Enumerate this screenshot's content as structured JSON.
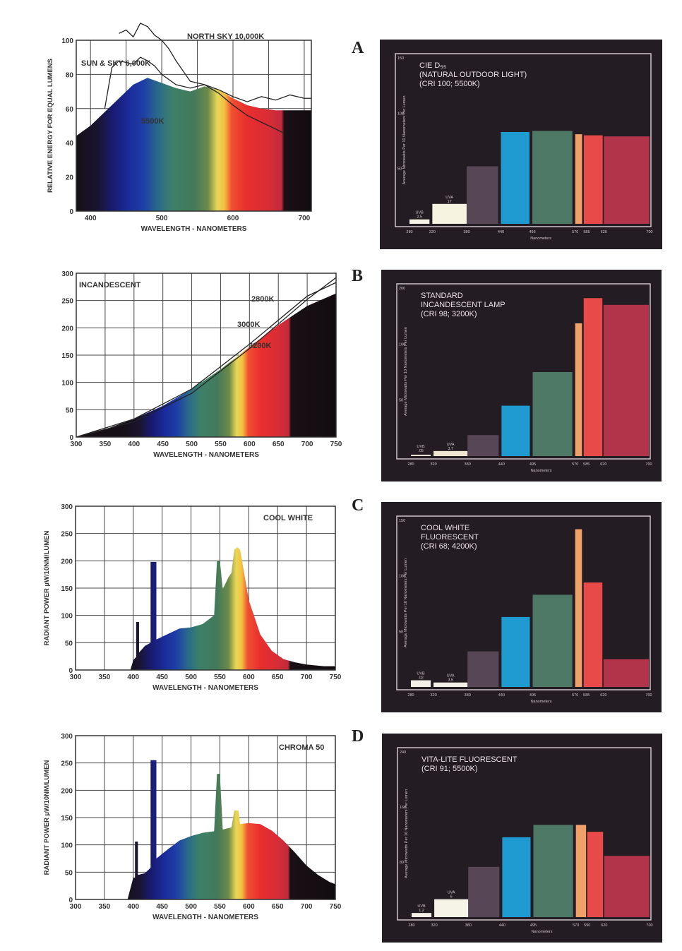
{
  "letters": [
    "A",
    "B",
    "C",
    "D"
  ],
  "colors": {
    "background": "#ffffff",
    "panel": "#231c22",
    "ink": "#333333"
  },
  "chart_data": [
    {
      "id": "spd-daylight",
      "type": "area",
      "xlabel": "WAVELENGTH - NANOMETERS",
      "ylabel": "RELATIVE ENERGY FOR EQUAL LUMENS",
      "xlim": [
        380,
        710
      ],
      "ylim": [
        0,
        100
      ],
      "xticks": [
        400,
        500,
        600,
        700
      ],
      "yticks": [
        0,
        20,
        40,
        60,
        80,
        100
      ],
      "annotations": [
        "NORTH SKY 10,000K",
        "SUN & SKY 6,000K",
        "5500K"
      ],
      "fill": [
        [
          380,
          44
        ],
        [
          400,
          50
        ],
        [
          420,
          58
        ],
        [
          440,
          66
        ],
        [
          460,
          74
        ],
        [
          480,
          78
        ],
        [
          500,
          75
        ],
        [
          520,
          72
        ],
        [
          540,
          70
        ],
        [
          560,
          73
        ],
        [
          580,
          71
        ],
        [
          600,
          66
        ],
        [
          620,
          62
        ],
        [
          640,
          60
        ],
        [
          660,
          59
        ],
        [
          680,
          59
        ],
        [
          700,
          59
        ],
        [
          710,
          59
        ]
      ],
      "series": [
        {
          "name": "NORTH SKY 10,000K",
          "x": [
            440,
            450,
            460,
            470,
            480,
            490,
            500,
            510,
            520,
            540,
            560,
            580,
            600,
            620,
            640,
            660,
            680,
            700,
            710
          ],
          "y": [
            104,
            106,
            102,
            110,
            108,
            103,
            100,
            95,
            88,
            76,
            74,
            71,
            67,
            64,
            67,
            65,
            68,
            66,
            66
          ]
        },
        {
          "name": "SUN & SKY 6,000K",
          "x": [
            420,
            430,
            440,
            450,
            460,
            470,
            480,
            490,
            500,
            520,
            540,
            560,
            580,
            600,
            620,
            640,
            660,
            670
          ],
          "y": [
            60,
            84,
            88,
            87,
            86,
            90,
            88,
            85,
            80,
            74,
            72,
            74,
            69,
            62,
            56,
            52,
            48,
            46
          ]
        }
      ]
    },
    {
      "id": "spd-incandescent",
      "type": "area",
      "xlabel": "WAVELENGTH - NANOMETERS",
      "ylabel": "",
      "xlim": [
        300,
        750
      ],
      "ylim": [
        0,
        300
      ],
      "xticks": [
        300,
        350,
        400,
        450,
        500,
        550,
        600,
        650,
        700,
        750
      ],
      "yticks": [
        0,
        50,
        100,
        150,
        200,
        250,
        300
      ],
      "annotations": [
        "INCANDESCENT",
        "2800K",
        "3000K",
        "3200K"
      ],
      "fill": [
        [
          300,
          0
        ],
        [
          350,
          14
        ],
        [
          400,
          33
        ],
        [
          450,
          57
        ],
        [
          500,
          88
        ],
        [
          550,
          124
        ],
        [
          600,
          165
        ],
        [
          650,
          205
        ],
        [
          700,
          240
        ],
        [
          750,
          263
        ]
      ],
      "series": [
        {
          "name": "2800K",
          "x": [
            300,
            400,
            500,
            600,
            700,
            750
          ],
          "y": [
            0,
            28,
            80,
            162,
            252,
            292
          ]
        },
        {
          "name": "3000K",
          "x": [
            300,
            400,
            500,
            600,
            700,
            750
          ],
          "y": [
            0,
            33,
            88,
            170,
            258,
            283
          ]
        }
      ]
    },
    {
      "id": "spd-cool-white",
      "type": "area",
      "xlabel": "WAVELENGTH - NANOMETERS",
      "ylabel": "RADIANT POWER µW/10NM/LUMEN",
      "xlim": [
        300,
        750
      ],
      "ylim": [
        0,
        300
      ],
      "xticks": [
        300,
        350,
        400,
        450,
        500,
        550,
        600,
        650,
        700,
        750
      ],
      "yticks": [
        0,
        50,
        100,
        150,
        200,
        250,
        300
      ],
      "annotations": [
        "COOL WHITE"
      ],
      "fill": [
        [
          395,
          0
        ],
        [
          400,
          18
        ],
        [
          405,
          24
        ],
        [
          405,
          88
        ],
        [
          410,
          88
        ],
        [
          410,
          32
        ],
        [
          420,
          44
        ],
        [
          430,
          50
        ],
        [
          430,
          198
        ],
        [
          440,
          198
        ],
        [
          440,
          56
        ],
        [
          460,
          66
        ],
        [
          480,
          76
        ],
        [
          500,
          78
        ],
        [
          520,
          84
        ],
        [
          540,
          100
        ],
        [
          545,
          200
        ],
        [
          550,
          200
        ],
        [
          555,
          148
        ],
        [
          565,
          170
        ],
        [
          570,
          178
        ],
        [
          575,
          220
        ],
        [
          580,
          225
        ],
        [
          585,
          220
        ],
        [
          590,
          190
        ],
        [
          600,
          128
        ],
        [
          620,
          65
        ],
        [
          640,
          35
        ],
        [
          660,
          20
        ],
        [
          680,
          14
        ],
        [
          700,
          10
        ],
        [
          730,
          7
        ],
        [
          750,
          7
        ],
        [
          750,
          0
        ]
      ]
    },
    {
      "id": "spd-chroma-50",
      "type": "area",
      "xlabel": "WAVELENGTH - NANOMETERS",
      "ylabel": "RADIANT POWER µW/10NM/LUMEN",
      "xlim": [
        300,
        750
      ],
      "ylim": [
        0,
        300
      ],
      "xticks": [
        300,
        350,
        400,
        450,
        500,
        550,
        600,
        650,
        700,
        750
      ],
      "yticks": [
        0,
        50,
        100,
        150,
        200,
        250,
        300
      ],
      "annotations": [
        "CHROMA 50"
      ],
      "fill": [
        [
          390,
          0
        ],
        [
          400,
          40
        ],
        [
          403,
          40
        ],
        [
          403,
          106
        ],
        [
          408,
          106
        ],
        [
          408,
          45
        ],
        [
          420,
          48
        ],
        [
          430,
          58
        ],
        [
          430,
          255
        ],
        [
          440,
          255
        ],
        [
          440,
          75
        ],
        [
          460,
          92
        ],
        [
          480,
          108
        ],
        [
          500,
          116
        ],
        [
          520,
          122
        ],
        [
          540,
          125
        ],
        [
          545,
          230
        ],
        [
          550,
          230
        ],
        [
          555,
          128
        ],
        [
          570,
          132
        ],
        [
          575,
          163
        ],
        [
          582,
          163
        ],
        [
          585,
          138
        ],
        [
          600,
          140
        ],
        [
          620,
          138
        ],
        [
          640,
          126
        ],
        [
          660,
          108
        ],
        [
          680,
          86
        ],
        [
          700,
          62
        ],
        [
          720,
          45
        ],
        [
          740,
          32
        ],
        [
          750,
          28
        ],
        [
          750,
          0
        ]
      ]
    },
    {
      "id": "bars-a",
      "type": "bar",
      "title": [
        "CIE D₅₅",
        "(NATURAL OUTDOOR LIGHT)",
        "(CRI 100; 5500K)"
      ],
      "ylabel": "Average Microwatts Per 10 Nanometers Per Lumen",
      "xlabel": "Nanometers",
      "ylim": [
        0,
        150
      ],
      "yticks": [
        "50",
        "100",
        "150"
      ],
      "xticks": [
        "280",
        "320",
        "380",
        "440",
        "495",
        "570",
        "585",
        "620",
        "700"
      ],
      "bars": [
        {
          "x0": 280,
          "x1": 315,
          "v": 4,
          "c": "#f6f2e6"
        },
        {
          "x0": 320,
          "x1": 380,
          "v": 18,
          "c": "#f6f4e0"
        },
        {
          "x0": 380,
          "x1": 435,
          "v": 52,
          "c": "#574656"
        },
        {
          "x0": 440,
          "x1": 490,
          "v": 83,
          "c": "#1f9ad0"
        },
        {
          "x0": 495,
          "x1": 565,
          "v": 84,
          "c": "#4e7866"
        },
        {
          "x0": 570,
          "x1": 582,
          "v": 81,
          "c": "#f0a16a"
        },
        {
          "x0": 585,
          "x1": 618,
          "v": 80,
          "c": "#e84a4a"
        },
        {
          "x0": 620,
          "x1": 700,
          "v": 79,
          "c": "#b2344a"
        }
      ],
      "uv": [
        {
          "label": "UVB",
          "v": "2.5"
        },
        {
          "label": "UVA",
          "v": "17"
        }
      ]
    },
    {
      "id": "bars-b",
      "type": "bar",
      "title": [
        "STANDARD",
        "INCANDESCENT LAMP",
        "(CRI 98; 3200K)"
      ],
      "ylabel": "Average Microwatts Per 10 Nanometers Per Lumen",
      "xlabel": "Nanometers",
      "ylim": [
        0,
        200
      ],
      "yticks": [
        "50",
        "100",
        "200"
      ],
      "xticks": [
        "280",
        "320",
        "380",
        "440",
        "495",
        "570",
        "585",
        "620",
        "700"
      ],
      "bars": [
        {
          "x0": 280,
          "x1": 315,
          "v": 1.5,
          "c": "#f3ece2"
        },
        {
          "x0": 320,
          "x1": 380,
          "v": 6,
          "c": "#efe6d2"
        },
        {
          "x0": 380,
          "x1": 435,
          "v": 25,
          "c": "#574656"
        },
        {
          "x0": 440,
          "x1": 490,
          "v": 60,
          "c": "#1f9ad0"
        },
        {
          "x0": 495,
          "x1": 565,
          "v": 100,
          "c": "#4e7866"
        },
        {
          "x0": 570,
          "x1": 582,
          "v": 158,
          "c": "#f0a16a"
        },
        {
          "x0": 585,
          "x1": 618,
          "v": 188,
          "c": "#e84a4a"
        },
        {
          "x0": 620,
          "x1": 700,
          "v": 180,
          "c": "#b2344a"
        }
      ],
      "uv": [
        {
          "label": "UVB",
          "v": ".05"
        },
        {
          "label": "UVA",
          "v": "3.7"
        }
      ]
    },
    {
      "id": "bars-c",
      "type": "bar",
      "title": [
        "COOL WHITE",
        "FLUORESCENT",
        "(CRI 68; 4200K)"
      ],
      "ylabel": "Average Microwatts Per 10 Nanometers Per Lumen",
      "xlabel": "Nanometers",
      "ylim": [
        0,
        150
      ],
      "yticks": [
        "50",
        "100",
        "150"
      ],
      "xticks": [
        "280",
        "320",
        "380",
        "440",
        "495",
        "570",
        "585",
        "620",
        "700"
      ],
      "bars": [
        {
          "x0": 280,
          "x1": 315,
          "v": 6,
          "c": "#f4f0e8"
        },
        {
          "x0": 320,
          "x1": 380,
          "v": 4,
          "c": "#f4f0e8"
        },
        {
          "x0": 380,
          "x1": 435,
          "v": 32,
          "c": "#574656"
        },
        {
          "x0": 440,
          "x1": 490,
          "v": 63,
          "c": "#1f9ad0"
        },
        {
          "x0": 495,
          "x1": 565,
          "v": 83,
          "c": "#4e7866"
        },
        {
          "x0": 570,
          "x1": 582,
          "v": 142,
          "c": "#f0a16a"
        },
        {
          "x0": 585,
          "x1": 618,
          "v": 94,
          "c": "#e84a4a"
        },
        {
          "x0": 620,
          "x1": 700,
          "v": 25,
          "c": "#b2344a"
        }
      ],
      "uv": [
        {
          "label": "UVB",
          "v": ".02"
        },
        {
          "label": "UVA",
          "v": "3.5"
        }
      ]
    },
    {
      "id": "bars-d",
      "type": "bar",
      "title": [
        "VITA-LITE FLUORESCENT",
        "(CRI 91; 5500K)"
      ],
      "ylabel": "Average Microwatts Per 10 Nanometers Per Lumen",
      "xlabel": "Nanometers",
      "ylim": [
        0,
        240
      ],
      "yticks": [
        "80",
        "160",
        "240"
      ],
      "xticks": [
        "280",
        "320",
        "380",
        "440",
        "495",
        "570",
        "590",
        "620",
        "700"
      ],
      "bars": [
        {
          "x0": 280,
          "x1": 315,
          "v": 6,
          "c": "#f4f0e8"
        },
        {
          "x0": 320,
          "x1": 380,
          "v": 26,
          "c": "#f6f4e6"
        },
        {
          "x0": 380,
          "x1": 435,
          "v": 73,
          "c": "#574656"
        },
        {
          "x0": 440,
          "x1": 490,
          "v": 116,
          "c": "#1f9ad0"
        },
        {
          "x0": 495,
          "x1": 565,
          "v": 134,
          "c": "#4e7866"
        },
        {
          "x0": 570,
          "x1": 588,
          "v": 134,
          "c": "#f0a16a"
        },
        {
          "x0": 590,
          "x1": 618,
          "v": 124,
          "c": "#e84a4a"
        },
        {
          "x0": 620,
          "x1": 700,
          "v": 89,
          "c": "#b2344a"
        }
      ],
      "uv": [
        {
          "label": "UVB",
          "v": "1.2"
        },
        {
          "label": "UVA",
          "v": "6"
        }
      ]
    }
  ]
}
